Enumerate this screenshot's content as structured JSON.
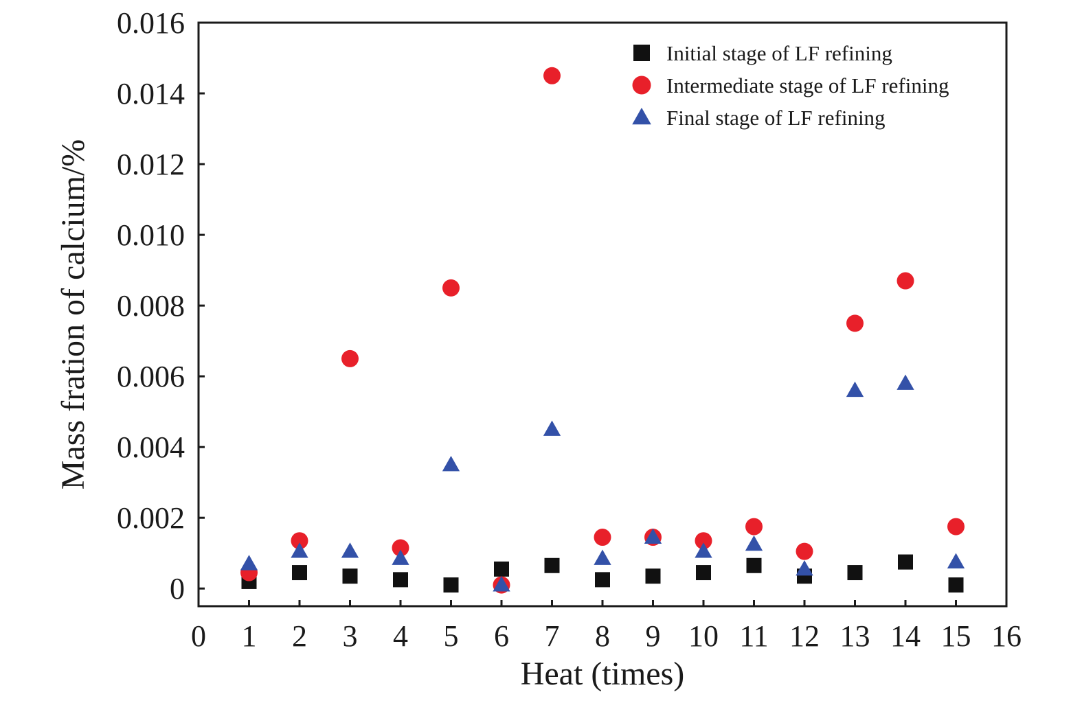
{
  "chart_data": {
    "type": "scatter",
    "xlabel": "Heat (times)",
    "ylabel": "Mass fration of calcium/%",
    "xlim": [
      0,
      16
    ],
    "ylim": [
      -0.0005,
      0.016
    ],
    "x_ticks": [
      "0",
      "1",
      "2",
      "3",
      "4",
      "5",
      "6",
      "7",
      "8",
      "9",
      "10",
      "11",
      "12",
      "13",
      "14",
      "15",
      "16"
    ],
    "y_ticks": [
      "0",
      "0.002",
      "0.004",
      "0.006",
      "0.008",
      "0.010",
      "0.012",
      "0.014",
      "0.016"
    ],
    "grid": false,
    "legend_position": "top-right",
    "x": [
      1,
      2,
      3,
      4,
      5,
      6,
      7,
      8,
      9,
      10,
      11,
      12,
      13,
      14,
      15
    ],
    "series": [
      {
        "name": "Initial stage of LF refining",
        "marker": "square",
        "color": "#111111",
        "values": [
          0.0002,
          0.00045,
          0.00035,
          0.00025,
          0.0001,
          0.00055,
          0.00065,
          0.00025,
          0.00035,
          0.00045,
          0.00065,
          0.00035,
          0.00045,
          0.00075,
          0.0001
        ]
      },
      {
        "name": "Intermediate stage of LF refining",
        "marker": "circle",
        "color": "#e8202a",
        "values": [
          0.00045,
          0.00135,
          0.0065,
          0.00115,
          0.0085,
          0.0001,
          0.0145,
          0.00145,
          0.00145,
          0.00135,
          0.00175,
          0.00105,
          0.0075,
          0.0087,
          0.00175
        ]
      },
      {
        "name": "Final stage of LF refining",
        "marker": "triangle",
        "color": "#3351a8",
        "values": [
          0.0007,
          0.00105,
          0.00105,
          0.00085,
          0.0035,
          0.0001,
          0.0045,
          0.00085,
          0.00145,
          0.00105,
          0.00125,
          0.00055,
          0.0056,
          0.0058,
          0.00075
        ]
      }
    ]
  }
}
